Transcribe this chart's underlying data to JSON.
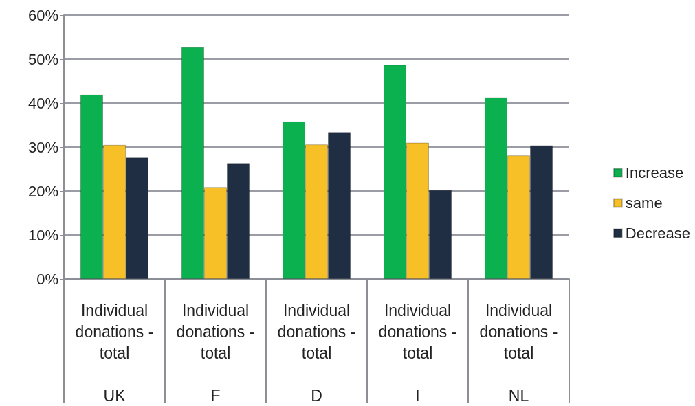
{
  "chart_data": {
    "type": "bar",
    "categories": [
      "Individual donations - total\nUK",
      "Individual donations - total\nF",
      "Individual donations - total\nD",
      "Individual donations - total\nI",
      "Individual donations - total\nNL"
    ],
    "series": [
      {
        "name": "Increase",
        "color": "#0bb14f",
        "values": [
          41.9,
          52.7,
          35.8,
          48.7,
          41.3
        ]
      },
      {
        "name": "same",
        "color": "#f6c026",
        "values": [
          30.5,
          20.9,
          30.6,
          31.0,
          28.1
        ]
      },
      {
        "name": "Decrease",
        "color": "#1f2e42",
        "values": [
          27.6,
          26.2,
          33.4,
          20.2,
          30.4
        ]
      }
    ],
    "ylim": [
      0,
      60
    ],
    "yticks": [
      {
        "value": 0,
        "label": "0%"
      },
      {
        "value": 10,
        "label": "10%"
      },
      {
        "value": 20,
        "label": "20%"
      },
      {
        "value": 30,
        "label": "30%"
      },
      {
        "value": 40,
        "label": "40%"
      },
      {
        "value": 50,
        "label": "50%"
      },
      {
        "value": 60,
        "label": "60%"
      }
    ],
    "grid": "y",
    "legend": "right"
  }
}
